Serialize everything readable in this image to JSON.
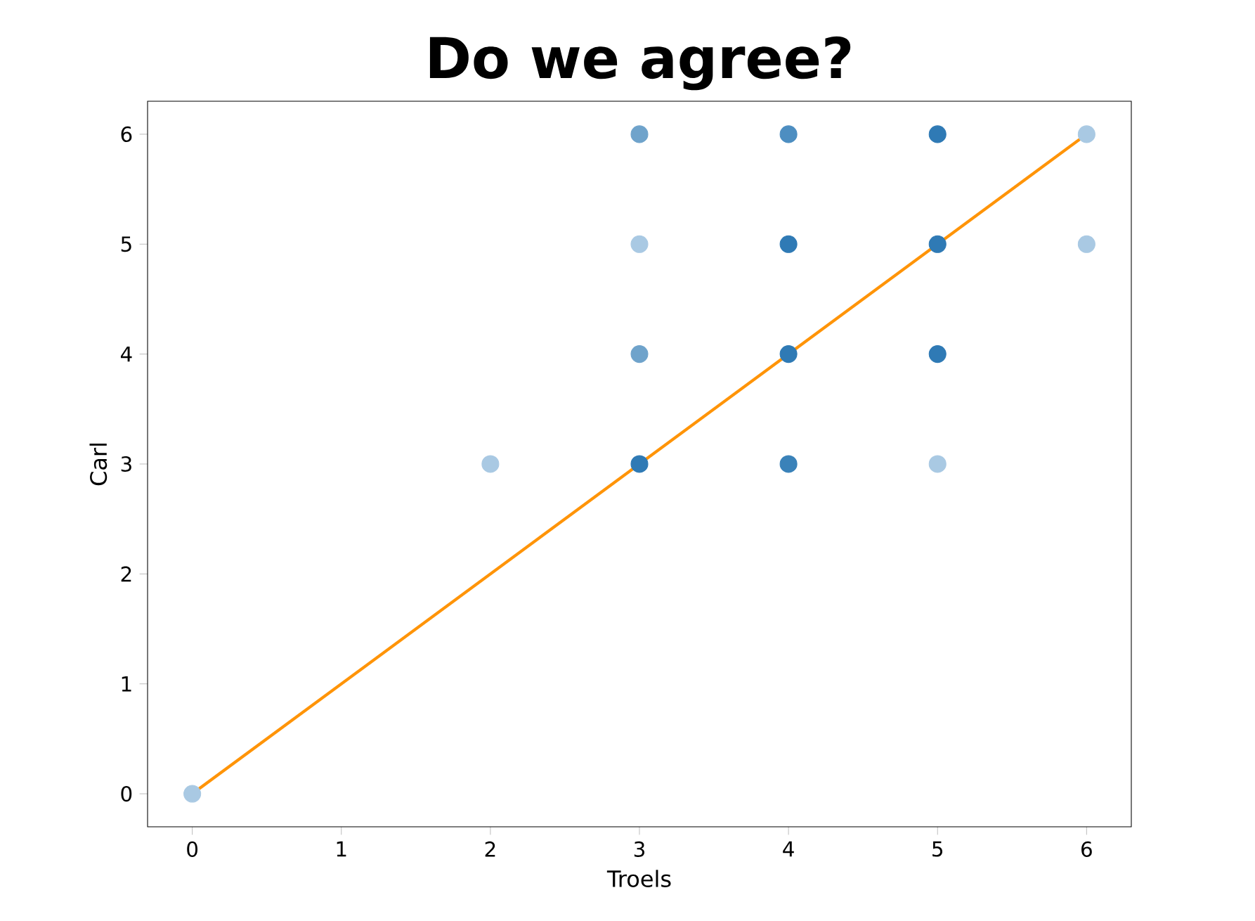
{
  "chart_data": {
    "type": "scatter",
    "title": "Do we agree?",
    "xlabel": "Troels",
    "ylabel": "Carl",
    "xlim": [
      -0.3,
      6.3
    ],
    "ylim": [
      -0.3,
      6.3
    ],
    "xticks": [
      0,
      1,
      2,
      3,
      4,
      5,
      6
    ],
    "yticks": [
      0,
      1,
      2,
      3,
      4,
      5,
      6
    ],
    "series": [
      {
        "marker": "circle",
        "x": [
          0,
          2,
          3,
          3,
          3,
          3,
          4,
          4,
          4,
          4,
          5,
          5,
          5,
          5,
          6,
          6
        ],
        "values": [
          0,
          3,
          3,
          4,
          5,
          6,
          3,
          4,
          5,
          6,
          3,
          4,
          5,
          6,
          5,
          6
        ],
        "colors": [
          "#a9c9e3",
          "#a9c9e3",
          "#2f7ab5",
          "#6fa3cb",
          "#a9c9e3",
          "#6fa3cb",
          "#3a82b9",
          "#2f7ab5",
          "#2f7ab5",
          "#4d8ec1",
          "#a9c9e3",
          "#2f7ab5",
          "#2f7ab5",
          "#2f7ab5",
          "#a9c9e3",
          "#a9c9e3"
        ]
      },
      {
        "type": "line",
        "marker": "none",
        "x": [
          0,
          6
        ],
        "values": [
          0,
          6
        ],
        "color": "#ff9408"
      }
    ]
  }
}
